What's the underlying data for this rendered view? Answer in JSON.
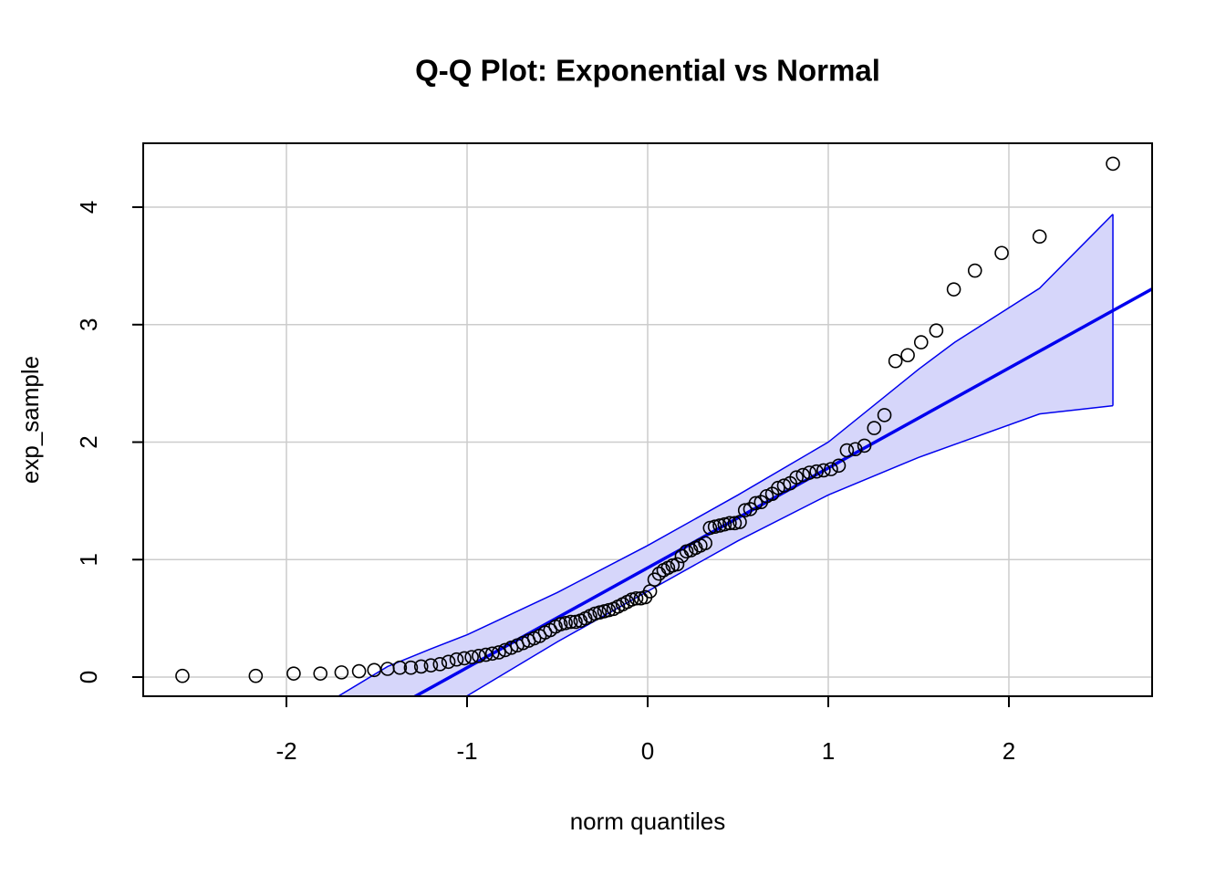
{
  "chart_data": {
    "type": "qqplot",
    "title": "Q-Q Plot: Exponential vs Normal",
    "xlabel": "norm quantiles",
    "ylabel": "exp_sample",
    "x": [
      -2.576,
      -2.17,
      -1.96,
      -1.812,
      -1.695,
      -1.598,
      -1.514,
      -1.44,
      -1.372,
      -1.311,
      -1.254,
      -1.2,
      -1.15,
      -1.103,
      -1.058,
      -1.015,
      -0.974,
      -0.935,
      -0.896,
      -0.86,
      -0.824,
      -0.789,
      -0.755,
      -0.722,
      -0.69,
      -0.659,
      -0.628,
      -0.598,
      -0.568,
      -0.539,
      -0.51,
      -0.482,
      -0.454,
      -0.426,
      -0.399,
      -0.372,
      -0.345,
      -0.319,
      -0.292,
      -0.266,
      -0.24,
      -0.215,
      -0.189,
      -0.164,
      -0.138,
      -0.113,
      -0.088,
      -0.063,
      -0.038,
      -0.013,
      0.013,
      0.038,
      0.063,
      0.088,
      0.113,
      0.138,
      0.164,
      0.189,
      0.215,
      0.24,
      0.266,
      0.292,
      0.319,
      0.345,
      0.372,
      0.399,
      0.426,
      0.454,
      0.482,
      0.51,
      0.539,
      0.568,
      0.598,
      0.628,
      0.659,
      0.69,
      0.722,
      0.755,
      0.789,
      0.824,
      0.86,
      0.896,
      0.935,
      0.974,
      1.015,
      1.058,
      1.103,
      1.15,
      1.2,
      1.254,
      1.311,
      1.372,
      1.44,
      1.514,
      1.598,
      1.695,
      1.812,
      1.96,
      2.17,
      2.576
    ],
    "values": [
      0.01,
      0.01,
      0.03,
      0.03,
      0.04,
      0.05,
      0.06,
      0.07,
      0.08,
      0.08,
      0.09,
      0.1,
      0.11,
      0.13,
      0.15,
      0.16,
      0.17,
      0.18,
      0.19,
      0.2,
      0.21,
      0.23,
      0.25,
      0.27,
      0.29,
      0.31,
      0.33,
      0.35,
      0.38,
      0.4,
      0.43,
      0.45,
      0.46,
      0.47,
      0.47,
      0.48,
      0.5,
      0.52,
      0.54,
      0.55,
      0.56,
      0.57,
      0.58,
      0.6,
      0.62,
      0.64,
      0.66,
      0.67,
      0.67,
      0.68,
      0.73,
      0.83,
      0.88,
      0.91,
      0.93,
      0.95,
      0.96,
      1.03,
      1.07,
      1.08,
      1.1,
      1.12,
      1.14,
      1.27,
      1.28,
      1.29,
      1.3,
      1.31,
      1.31,
      1.32,
      1.42,
      1.43,
      1.48,
      1.49,
      1.54,
      1.56,
      1.61,
      1.63,
      1.65,
      1.7,
      1.72,
      1.74,
      1.75,
      1.76,
      1.77,
      1.8,
      1.93,
      1.94,
      1.97,
      2.12,
      2.23,
      2.69,
      2.74,
      2.85,
      2.95,
      3.3,
      3.46,
      3.61,
      3.75,
      4.37
    ],
    "point_color": "#000000",
    "reference_line": {
      "intercept": 0.93,
      "slope": 0.85,
      "color": "#0000ee"
    },
    "band": {
      "x": [
        -1.71,
        -1.44,
        -1.2,
        -1.0,
        -0.5,
        0,
        0.5,
        1.0,
        1.5,
        1.7,
        2.17,
        2.576
      ],
      "upper": [
        -0.16,
        0.09,
        0.24,
        0.36,
        0.72,
        1.12,
        1.55,
        2.0,
        2.62,
        2.85,
        3.31,
        3.94
      ],
      "lower": [
        -0.75,
        -0.53,
        -0.34,
        -0.16,
        0.3,
        0.73,
        1.16,
        1.55,
        1.87,
        1.98,
        2.24,
        2.31
      ],
      "color": "#0000ee",
      "fill": "#d6d6fa"
    },
    "xlim": [
      -2.793,
      2.793
    ],
    "ylim": [
      -0.163,
      4.544
    ],
    "xticks": [
      -2,
      -1,
      0,
      1,
      2
    ],
    "yticks": [
      0,
      1,
      2,
      3,
      4
    ],
    "grid": true
  }
}
